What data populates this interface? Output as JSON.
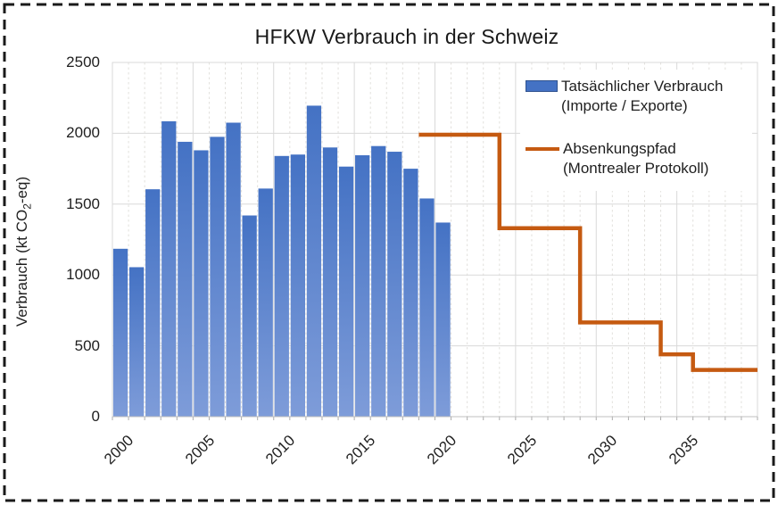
{
  "frame": {
    "style": "dashed",
    "color": "#1a1a1a"
  },
  "chart_data": {
    "type": "bar",
    "title": "HFKW Verbrauch in der Schweiz",
    "xlabel": "",
    "ylabel": "Verbrauch (kt CO₂-eq)",
    "ylabel_parts": {
      "pre": "Verbrauch (kt CO",
      "sub": "2",
      "post": "-eq)"
    },
    "xlim": [
      2000,
      2040
    ],
    "ylim": [
      0,
      2500
    ],
    "x_ticks": [
      2000,
      2005,
      2010,
      2015,
      2020,
      2025,
      2030,
      2035
    ],
    "y_ticks": [
      0,
      500,
      1000,
      1500,
      2000,
      2500
    ],
    "grid": {
      "horizontal_major": true,
      "vertical_major_every_years": 5,
      "vertical_minor_dashed_every_years": 1
    },
    "legend_position": "top-right",
    "series": [
      {
        "name": "Tatsächlicher Verbrauch (Importe / Exporte)",
        "type": "bar",
        "color": "#4472C4",
        "color_gradient_bottom": "#7E9CD9",
        "years": [
          2000,
          2001,
          2002,
          2003,
          2004,
          2005,
          2006,
          2007,
          2008,
          2009,
          2010,
          2011,
          2012,
          2013,
          2014,
          2015,
          2016,
          2017,
          2018,
          2019,
          2020
        ],
        "values": [
          1185,
          1055,
          1605,
          2085,
          1940,
          1880,
          1975,
          2075,
          1420,
          1610,
          1840,
          1850,
          2195,
          1900,
          1765,
          1845,
          1910,
          1870,
          1750,
          1540,
          1370
        ]
      },
      {
        "name": "Absenkungspfad (Montrealer Protokoll)",
        "type": "step-line",
        "color": "#C55A11",
        "segments": [
          {
            "from_year": 2019,
            "to_year": 2024,
            "value": 1990
          },
          {
            "from_year": 2024,
            "to_year": 2029,
            "value": 1330
          },
          {
            "from_year": 2029,
            "to_year": 2034,
            "value": 665
          },
          {
            "from_year": 2034,
            "to_year": 2036,
            "value": 440
          },
          {
            "from_year": 2036,
            "to_year": 2040,
            "value": 330
          }
        ]
      }
    ]
  },
  "legend": {
    "items": [
      {
        "label": "Tatsächlicher Verbrauch",
        "sublabel": "(Importe / Exporte)",
        "marker": "bar-swatch",
        "color": "#4472C4"
      },
      {
        "label": "Absenkungspfad",
        "sublabel": "(Montrealer Protokoll)",
        "marker": "line-swatch",
        "color": "#C55A11"
      }
    ]
  },
  "colors": {
    "bar": "#4472C4",
    "bar_border": "#2F528F",
    "bar_gradient_bottom": "#7E9CD9",
    "step_line": "#C55A11",
    "grid_major": "#D9D9D9",
    "grid_minor": "#E2E0DC",
    "axis_line": "#BFBFBF",
    "tick_mark": "#ABABAB",
    "text": "#262626"
  }
}
